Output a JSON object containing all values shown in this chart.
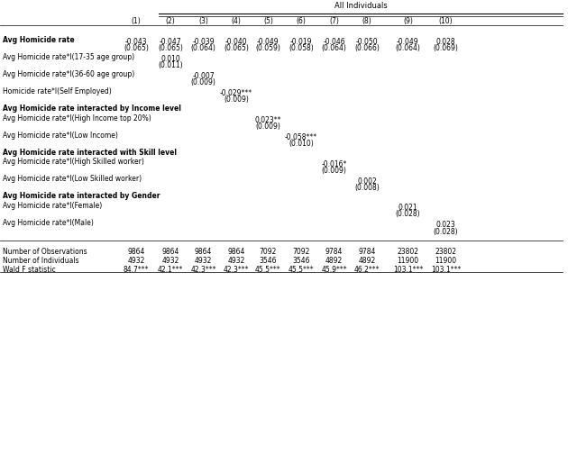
{
  "title": "All Individuals",
  "columns": [
    "(1)",
    "(2)",
    "(3)",
    "(4)",
    "(5)",
    "(6)",
    "(7)",
    "(8)",
    "(9)",
    "(10)"
  ],
  "rows": [
    {
      "label": "Avg Homicide rate",
      "bold": true,
      "values": [
        "-0.043",
        "-0.047",
        "-0.039",
        "-0.040",
        "-0.049",
        "-0.019",
        "-0.046",
        "-0.050",
        "-0.049",
        "0.028"
      ],
      "se": [
        "(0.065)",
        "(0.065)",
        "(0.064)",
        "(0.065)",
        "(0.059)",
        "(0.058)",
        "(0.064)",
        "(0.066)",
        "(0.064)",
        "(0.069)"
      ]
    },
    {
      "label": "Avg Homicide rate*I(17-35 age group)",
      "bold": false,
      "values": [
        "",
        "0.010",
        "",
        "",
        "",
        "",
        "",
        "",
        "",
        ""
      ],
      "se": [
        "",
        "(0.011)",
        "",
        "",
        "",
        "",
        "",
        "",
        "",
        ""
      ]
    },
    {
      "label": "Avg Homicide rate*I(36-60 age group)",
      "bold": false,
      "values": [
        "",
        "",
        "-0.007",
        "",
        "",
        "",
        "",
        "",
        "",
        ""
      ],
      "se": [
        "",
        "",
        "(0.009)",
        "",
        "",
        "",
        "",
        "",
        "",
        ""
      ]
    },
    {
      "label": "Homicide rate*I(Self Employed)",
      "bold": false,
      "values": [
        "",
        "",
        "",
        "-0.029***",
        "",
        "",
        "",
        "",
        "",
        ""
      ],
      "se": [
        "",
        "",
        "",
        "(0.009)",
        "",
        "",
        "",
        "",
        "",
        ""
      ]
    },
    {
      "label": "Avg Homicide rate interacted by Income level",
      "bold": true,
      "values": [
        "",
        "",
        "",
        "",
        "",
        "",
        "",
        "",
        "",
        ""
      ],
      "se": [
        "",
        "",
        "",
        "",
        "",
        "",
        "",
        "",
        "",
        ""
      ]
    },
    {
      "label": "Avg Homicide rate*I(High Income top 20%)",
      "bold": false,
      "values": [
        "",
        "",
        "",
        "",
        "0.023**",
        "",
        "",
        "",
        "",
        ""
      ],
      "se": [
        "",
        "",
        "",
        "",
        "(0.009)",
        "",
        "",
        "",
        "",
        ""
      ]
    },
    {
      "label": "Avg Homicide rate*I(Low Income)",
      "bold": false,
      "values": [
        "",
        "",
        "",
        "",
        "",
        "-0.058***",
        "",
        "",
        "",
        ""
      ],
      "se": [
        "",
        "",
        "",
        "",
        "",
        "(0.010)",
        "",
        "",
        "",
        ""
      ]
    },
    {
      "label": "Avg Homicide rate interacted with Skill level",
      "bold": true,
      "values": [
        "",
        "",
        "",
        "",
        "",
        "",
        "",
        "",
        "",
        ""
      ],
      "se": [
        "",
        "",
        "",
        "",
        "",
        "",
        "",
        "",
        "",
        ""
      ]
    },
    {
      "label": "Avg Homicide rate*I(High Skilled worker)",
      "bold": false,
      "values": [
        "",
        "",
        "",
        "",
        "",
        "",
        "-0.016*",
        "",
        "",
        ""
      ],
      "se": [
        "",
        "",
        "",
        "",
        "",
        "",
        "(0.009)",
        "",
        "",
        ""
      ]
    },
    {
      "label": "Avg Homicide rate*I(Low Skilled worker)",
      "bold": false,
      "values": [
        "",
        "",
        "",
        "",
        "",
        "",
        "",
        "0.002",
        "",
        ""
      ],
      "se": [
        "",
        "",
        "",
        "",
        "",
        "",
        "",
        "(0.008)",
        "",
        ""
      ]
    },
    {
      "label": "Avg Homicide rate interacted by Gender",
      "bold": true,
      "values": [
        "",
        "",
        "",
        "",
        "",
        "",
        "",
        "",
        "",
        ""
      ],
      "se": [
        "",
        "",
        "",
        "",
        "",
        "",
        "",
        "",
        "",
        ""
      ]
    },
    {
      "label": "Avg Homicide rate*I(Female)",
      "bold": false,
      "values": [
        "",
        "",
        "",
        "",
        "",
        "",
        "",
        "",
        "0.021",
        ""
      ],
      "se": [
        "",
        "",
        "",
        "",
        "",
        "",
        "",
        "",
        "(0.028)",
        ""
      ]
    },
    {
      "label": "Avg Homicide rate*I(Male)",
      "bold": false,
      "values": [
        "",
        "",
        "",
        "",
        "",
        "",
        "",
        "",
        "",
        "0.023"
      ],
      "se": [
        "",
        "",
        "",
        "",
        "",
        "",
        "",
        "",
        "",
        "(0.028)"
      ]
    }
  ],
  "footer_rows": [
    {
      "label": "Number of Observations",
      "values": [
        "9864",
        "9864",
        "9864",
        "9864",
        "7092",
        "7092",
        "9784",
        "9784",
        "23802",
        "23802"
      ]
    },
    {
      "label": "Number of Individuals",
      "values": [
        "4932",
        "4932",
        "4932",
        "4932",
        "3546",
        "3546",
        "4892",
        "4892",
        "11900",
        "11900"
      ]
    },
    {
      "label": "Wald F statistic",
      "values": [
        "84.7***",
        "42.1***",
        "42.3***",
        "42.3***",
        "45.5***",
        "45.5***",
        "45.9***",
        "46.2***",
        "103.1***",
        "103.1***"
      ]
    }
  ]
}
